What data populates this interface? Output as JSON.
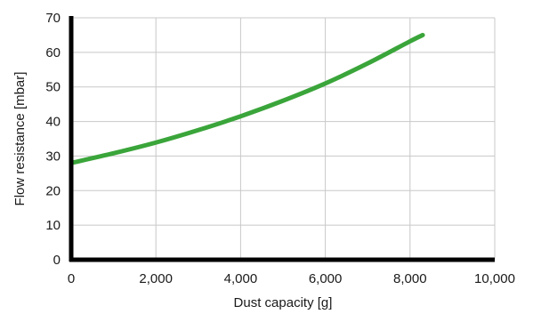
{
  "chart_data": {
    "type": "line",
    "title": "",
    "xlabel": "Dust capacity [g]",
    "ylabel": "Flow resistance [mbar]",
    "xlim": [
      0,
      10000
    ],
    "ylim": [
      0,
      70
    ],
    "xticks": [
      0,
      2000,
      4000,
      6000,
      8000,
      10000
    ],
    "xtick_labels": [
      "0",
      "2,000",
      "4,000",
      "6,000",
      "8,000",
      "10,000"
    ],
    "yticks": [
      0,
      10,
      20,
      30,
      40,
      50,
      60,
      70
    ],
    "ytick_labels": [
      "0",
      "10",
      "20",
      "30",
      "40",
      "50",
      "60",
      "70"
    ],
    "grid": true,
    "series": [
      {
        "color": "#3aa53a",
        "x": [
          0,
          1000,
          2000,
          3000,
          4000,
          5000,
          6000,
          7000,
          8000,
          8300
        ],
        "y": [
          28.0,
          30.8,
          33.9,
          37.5,
          41.5,
          46.0,
          51.0,
          56.8,
          63.2,
          65.0
        ]
      }
    ]
  }
}
